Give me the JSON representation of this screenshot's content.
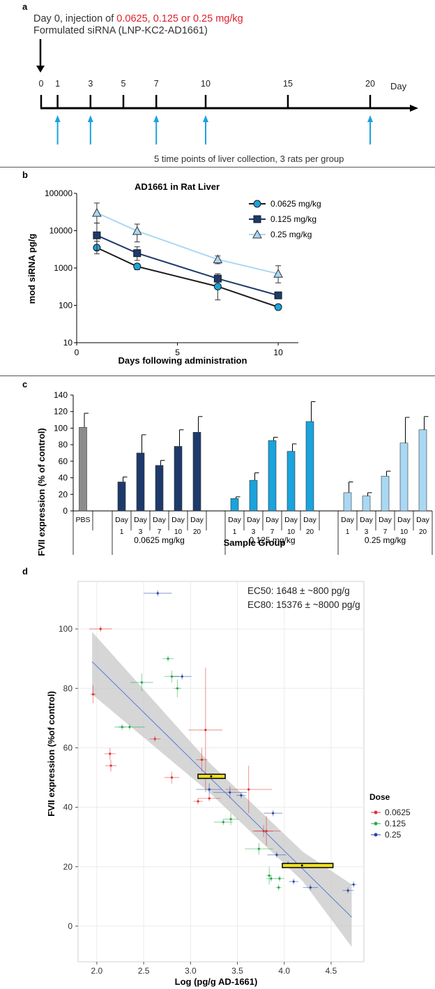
{
  "panels": {
    "a": {
      "letter": "a",
      "title_prefix": "Day 0, injection of ",
      "title_doses": "0.0625, 0.125 or 0.25 mg/kg",
      "subtitle": "Formulated siRNA (LNP-KC2-AD1661)",
      "axis_label": "Day",
      "tick_days": [
        0,
        1,
        3,
        5,
        7,
        10,
        15,
        20
      ],
      "collection_days": [
        1,
        3,
        7,
        10,
        20
      ],
      "caption": "5 time points of liver collection, 3 rats per group",
      "colors": {
        "dose_text": "#e0202a",
        "arrow": "#1ba3dc",
        "axis": "#000000"
      }
    },
    "b": {
      "letter": "b",
      "title": "AD1661 in Rat Liver",
      "xlabel": "Days following administration",
      "ylabel": "mod siRNA pg/g",
      "yticks": [
        "100000",
        "10000",
        "1000",
        "100",
        "10"
      ],
      "xticks": [
        "0",
        "5",
        "10"
      ]
    },
    "c": {
      "letter": "c",
      "ylabel": "FVII expression (% of control)",
      "xlabel": "Sample Group",
      "yticks": [
        "140",
        "120",
        "100",
        "80",
        "60",
        "40",
        "20",
        "0"
      ],
      "pbs_label": "PBS",
      "day_word": "Day",
      "day_numbers": [
        "1",
        "3",
        "7",
        "10",
        "20"
      ],
      "group_labels": [
        "0.0625 mg/kg",
        "0.125 mg/kg",
        "0.25 mg/kg"
      ]
    },
    "d": {
      "letter": "d",
      "ec50": "EC50: 1648 ± ~800 pg/g",
      "ec80": "EC80: 15376 ± ~8000 pg/g",
      "xlabel": "Log (pg/g AD-1661)",
      "ylabel": "FVII expression (%of control)",
      "legend_title": "Dose",
      "xticks": [
        "2.0",
        "2.5",
        "3.0",
        "3.5",
        "4.0",
        "4.5"
      ],
      "yticks": [
        "100",
        "80",
        "60",
        "40",
        "20",
        "0"
      ]
    }
  },
  "chart_data": [
    {
      "type": "line",
      "panel": "b",
      "title": "AD1661 in Rat Liver",
      "xlabel": "Days following administration",
      "ylabel": "mod siRNA pg/g",
      "yscale": "log",
      "xlim": [
        0,
        11
      ],
      "ylim": [
        10,
        100000
      ],
      "legend_placement": "top-right",
      "x": [
        1,
        3,
        7,
        10
      ],
      "series": [
        {
          "name": "0.0625 mg/kg",
          "marker": "circle",
          "color": "#1aa3dc",
          "line": "#1a1a1a",
          "values": [
            3500,
            1100,
            320,
            90
          ],
          "err_hi": [
            5200,
            1300,
            700,
            100
          ],
          "err_lo": [
            2400,
            900,
            140,
            80
          ]
        },
        {
          "name": "0.125 mg/kg",
          "marker": "square",
          "color": "#1d3a6b",
          "line": "#1d3a6b",
          "values": [
            7500,
            2500,
            520,
            185
          ],
          "err_hi": [
            16000,
            3700,
            640,
            200
          ],
          "err_lo": [
            3000,
            1600,
            430,
            170
          ]
        },
        {
          "name": "0.25 mg/kg",
          "marker": "triangle",
          "color": "#a9d8f4",
          "line": "#a9d8f4",
          "values": [
            30000,
            9800,
            1700,
            700
          ],
          "err_hi": [
            55000,
            15000,
            2100,
            1150
          ],
          "err_lo": [
            16000,
            5000,
            1300,
            400
          ]
        }
      ]
    },
    {
      "type": "bar",
      "panel": "c",
      "xlabel": "Sample Group",
      "ylabel": "FVII expression (% of control)",
      "ylim": [
        0,
        140
      ],
      "categories": [
        "PBS",
        "Day 1",
        "Day 3",
        "Day 7",
        "Day 10",
        "Day 20",
        "Day 1",
        "Day 3",
        "Day 7",
        "Day 10",
        "Day 20",
        "Day 1",
        "Day 3",
        "Day 7",
        "Day 10",
        "Day 20"
      ],
      "groups": [
        "",
        "0.0625 mg/kg",
        "0.0625 mg/kg",
        "0.0625 mg/kg",
        "0.0625 mg/kg",
        "0.0625 mg/kg",
        "0.125 mg/kg",
        "0.125 mg/kg",
        "0.125 mg/kg",
        "0.125 mg/kg",
        "0.125 mg/kg",
        "0.25 mg/kg",
        "0.25 mg/kg",
        "0.25 mg/kg",
        "0.25 mg/kg",
        "0.25 mg/kg"
      ],
      "values": [
        101,
        35,
        70,
        55,
        78,
        95,
        15,
        37,
        85,
        72,
        108,
        22,
        18,
        42,
        82,
        98
      ],
      "errors": [
        17,
        6,
        22,
        6,
        20,
        19,
        2,
        9,
        4,
        9,
        24,
        13,
        4,
        6,
        31,
        16
      ],
      "colors": [
        "#8c8c8c",
        "#1d3a6b",
        "#1d3a6b",
        "#1d3a6b",
        "#1d3a6b",
        "#1d3a6b",
        "#1aa3dc",
        "#1aa3dc",
        "#1aa3dc",
        "#1aa3dc",
        "#1aa3dc",
        "#a9d8f4",
        "#a9d8f4",
        "#a9d8f4",
        "#a9d8f4",
        "#a9d8f4"
      ]
    },
    {
      "type": "scatter",
      "panel": "d",
      "xlabel": "Log (pg/g AD-1661)",
      "ylabel": "FVII expression (%of control)",
      "xlim": [
        1.8,
        4.85
      ],
      "ylim": [
        -12,
        116
      ],
      "grid": true,
      "legend_title": "Dose",
      "legend_placement": "right",
      "series": [
        {
          "name": "0.0625",
          "color": "#e03030",
          "points": [
            [
              2.04,
              100,
              0.12,
              1
            ],
            [
              1.96,
              78,
              0.03,
              3
            ],
            [
              2.14,
              58,
              0.06,
              2
            ],
            [
              2.15,
              54,
              0.06,
              2
            ],
            [
              2.62,
              63,
              0.06,
              1
            ],
            [
              2.8,
              50,
              0.08,
              2
            ],
            [
              3.08,
              42,
              0.05,
              1
            ],
            [
              3.16,
              66,
              0.18,
              21
            ],
            [
              3.12,
              56,
              0.06,
              4
            ],
            [
              3.2,
              43,
              0.12,
              1
            ],
            [
              3.62,
              46,
              0.25,
              8
            ],
            [
              3.78,
              32,
              0.1,
              2
            ],
            [
              3.81,
              32,
              0.15,
              5
            ]
          ]
        },
        {
          "name": "0.125",
          "color": "#26a84a",
          "points": [
            [
              2.27,
              67,
              0.04,
              1
            ],
            [
              2.35,
              67,
              0.16,
              1
            ],
            [
              2.48,
              82,
              0.12,
              3
            ],
            [
              2.76,
              90,
              0.06,
              1
            ],
            [
              2.8,
              84,
              0.08,
              2
            ],
            [
              2.86,
              80,
              0.04,
              3
            ],
            [
              3.35,
              35,
              0.1,
              1
            ],
            [
              3.43,
              36,
              0.08,
              2
            ],
            [
              3.73,
              26,
              0.15,
              2
            ],
            [
              3.84,
              17,
              0.03,
              3
            ],
            [
              3.86,
              16,
              0.05,
              1
            ],
            [
              3.94,
              13,
              0.03,
              1
            ],
            [
              3.95,
              16,
              0.05,
              1
            ]
          ]
        },
        {
          "name": "0.25",
          "color": "#2a44a8",
          "points": [
            [
              2.65,
              112,
              0.15,
              1
            ],
            [
              2.91,
              84,
              0.1,
              1
            ],
            [
              3.2,
              46,
              0.14,
              2
            ],
            [
              3.42,
              45,
              0.18,
              2
            ],
            [
              3.54,
              44,
              0.05,
              1
            ],
            [
              3.88,
              38,
              0.1,
              1
            ],
            [
              3.92,
              24,
              0.1,
              1
            ],
            [
              4.04,
              21,
              0.07,
              1
            ],
            [
              4.1,
              15,
              0.05,
              1
            ],
            [
              4.28,
              13,
              0.08,
              1
            ],
            [
              4.74,
              14,
              0.03,
              1
            ],
            [
              4.68,
              12,
              0.06,
              1
            ]
          ]
        }
      ],
      "fit_line": {
        "color": "#5a7bd6",
        "from": [
          1.95,
          89
        ],
        "to": [
          4.72,
          3
        ]
      },
      "confidence_band": {
        "upper": [
          [
            1.95,
            99
          ],
          [
            3.2,
            55
          ],
          [
            4.2,
            25
          ],
          [
            4.72,
            14
          ]
        ],
        "lower": [
          [
            1.95,
            78
          ],
          [
            3.2,
            45
          ],
          [
            4.2,
            15
          ],
          [
            4.72,
            -7
          ]
        ]
      },
      "ec_markers": [
        {
          "x": 3.22,
          "y": 50.4,
          "x_lo": 3.08,
          "x_hi": 3.37,
          "color": "#f0e020"
        },
        {
          "x": 4.19,
          "y": 20.4,
          "x_lo": 3.98,
          "x_hi": 4.52,
          "color": "#f0e020"
        }
      ]
    }
  ]
}
